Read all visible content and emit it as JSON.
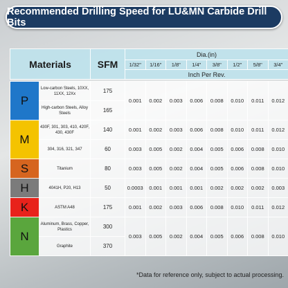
{
  "header": {
    "title": "Recommended Drilling Speed for LU&MN Carbide Drill Bits"
  },
  "table": {
    "materials_label": "Materials",
    "sfm_label": "SFM",
    "dia_label": "Dia.(in)",
    "ipr_label": "Inch Per Rev.",
    "sizes": [
      "1/32\"",
      "1/16\"",
      "1/8\"",
      "1/4\"",
      "3/8\"",
      "1/2\"",
      "5/8\"",
      "3/4\""
    ],
    "groups": [
      {
        "letter": "P",
        "color": "#1f77c9",
        "materials": [
          {
            "name": "Low-carbon Steels, 10XX, 11XX, 12Xx",
            "sfm": 175
          },
          {
            "name": "High-carbon Steels, Alloy Steels",
            "sfm": 165
          }
        ],
        "feeds": [
          [
            "0.001",
            "0.002",
            "0.003",
            "0.006",
            "0.008",
            "0.010",
            "0.011",
            "0.012"
          ]
        ]
      },
      {
        "letter": "M",
        "color": "#f4c300",
        "materials": [
          {
            "name": "430F, 301, 303, 410, 420F, 430, 430F",
            "sfm": 140
          },
          {
            "name": "304, 316, 321, 347",
            "sfm": 60
          }
        ],
        "feeds": [
          [
            "0.001",
            "0.002",
            "0.003",
            "0.006",
            "0.008",
            "0.010",
            "0.011",
            "0.012"
          ],
          [
            "0.003",
            "0.005",
            "0.002",
            "0.004",
            "0.005",
            "0.006",
            "0.008",
            "0.010"
          ]
        ]
      },
      {
        "letter": "S",
        "color": "#d6651f",
        "materials": [
          {
            "name": "Titanium",
            "sfm": 80
          }
        ],
        "feeds": [
          [
            "0.003",
            "0.005",
            "0.002",
            "0.004",
            "0.005",
            "0.006",
            "0.008",
            "0.010"
          ]
        ]
      },
      {
        "letter": "H",
        "color": "#7b7b7b",
        "materials": [
          {
            "name": "4041H, P20, H13",
            "sfm": 50
          }
        ],
        "feeds": [
          [
            "0.0003",
            "0.001",
            "0.001",
            "0.001",
            "0.002",
            "0.002",
            "0.002",
            "0.003"
          ]
        ]
      },
      {
        "letter": "K",
        "color": "#e8221b",
        "materials": [
          {
            "name": "ASTM A48",
            "sfm": 175
          }
        ],
        "feeds": [
          [
            "0.001",
            "0.002",
            "0.003",
            "0.006",
            "0.008",
            "0.010",
            "0.011",
            "0.012"
          ]
        ]
      },
      {
        "letter": "N",
        "color": "#5aa63d",
        "materials": [
          {
            "name": "Aluminum, Brass, Copper, Plastics",
            "sfm": 300
          },
          {
            "name": "Graphite",
            "sfm": 370
          }
        ],
        "feeds": [
          [
            "0.003",
            "0.005",
            "0.002",
            "0.004",
            "0.005",
            "0.006",
            "0.008",
            "0.010"
          ]
        ]
      }
    ]
  },
  "footnote": "*Data for reference only, subject to actual processing."
}
